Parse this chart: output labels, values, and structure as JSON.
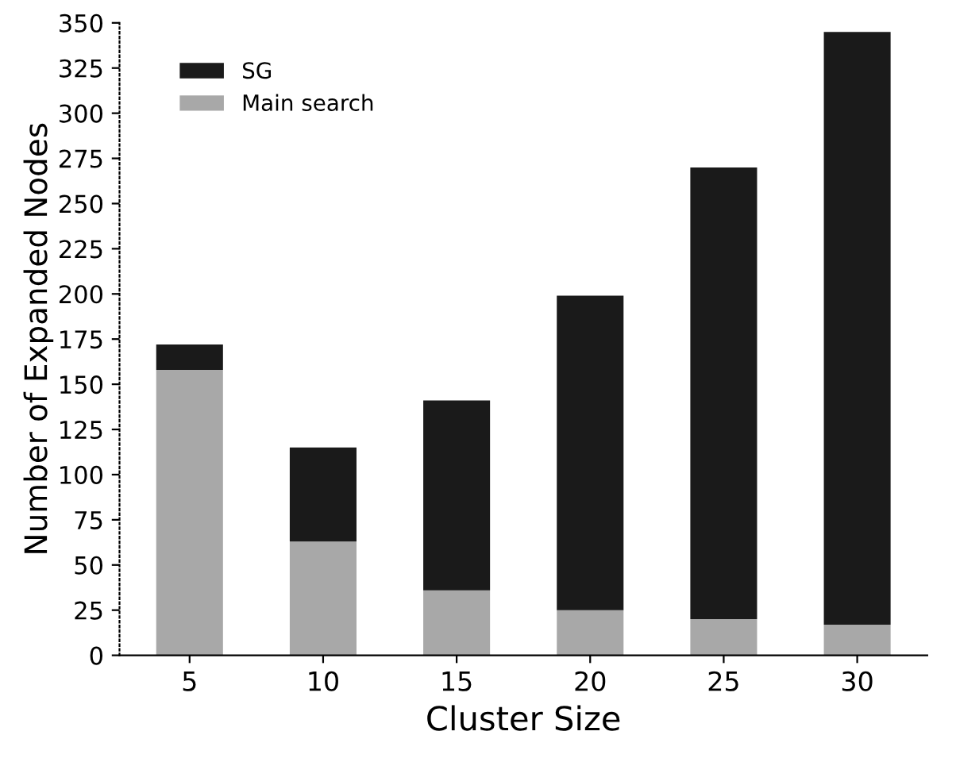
{
  "chart_data": {
    "type": "bar",
    "stacked": true,
    "xlabel": "Cluster Size",
    "ylabel": "Number of Expanded Nodes",
    "categories": [
      "5",
      "10",
      "15",
      "20",
      "25",
      "30"
    ],
    "series": [
      {
        "name": "Main search",
        "color": "#a8a8a8",
        "values": [
          158,
          63,
          36,
          25,
          20,
          17
        ]
      },
      {
        "name": "SG",
        "color": "#1a1a1a",
        "values": [
          14,
          52,
          105,
          174,
          250,
          328
        ]
      }
    ],
    "ylim": [
      0,
      350
    ],
    "yticks": [
      0,
      25,
      50,
      75,
      100,
      125,
      150,
      175,
      200,
      225,
      250,
      275,
      300,
      325,
      350
    ],
    "grid": false,
    "legend": "top left"
  }
}
